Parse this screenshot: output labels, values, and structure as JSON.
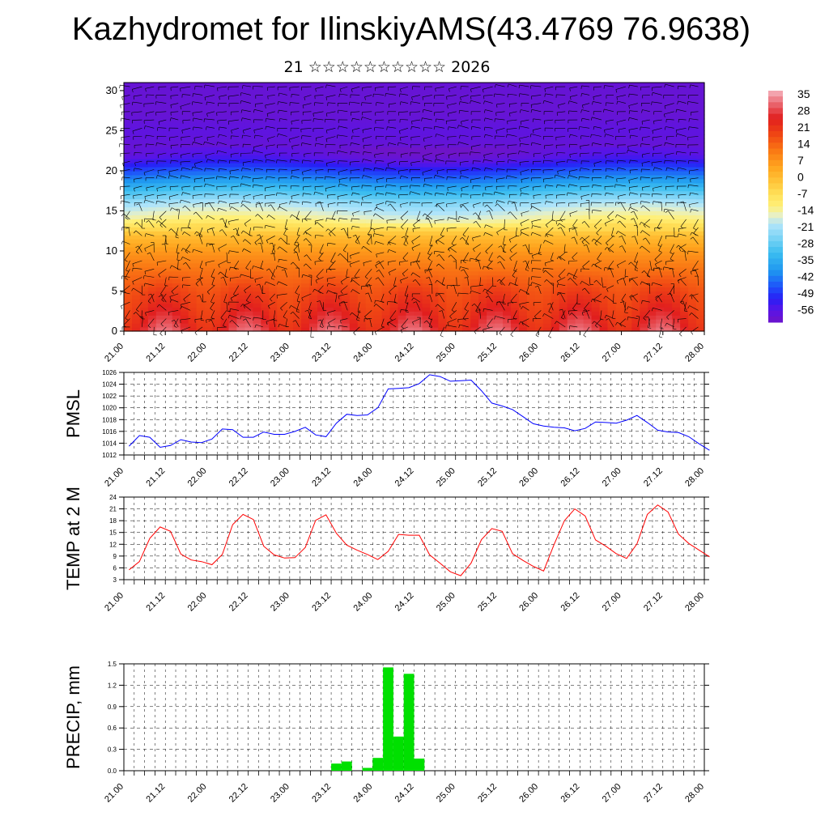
{
  "title": "Kazhydromet for IlinskiyAMS(43.4769 76.9638)",
  "subtitle": "21 ☆☆☆☆☆☆☆☆☆☆ 2026",
  "colors": {
    "pmsl_line": "#0000ff",
    "temp_line": "#ff0000",
    "precip_bar": "#00e000"
  },
  "chart_data": [
    {
      "type": "heatmap",
      "title": "",
      "xlabel": "",
      "ylabel": "",
      "x_ticks": [
        "21.00",
        "21.12",
        "22.00",
        "22.12",
        "23.00",
        "23.12",
        "24.00",
        "24.12",
        "25.00",
        "25.12",
        "26.00",
        "26.12",
        "27.00",
        "27.12",
        "28.00"
      ],
      "y_ticks": [
        0,
        5,
        10,
        15,
        20,
        25,
        30
      ],
      "ylim": [
        0,
        31
      ],
      "overlay": "wind barbs",
      "colorbar": {
        "labels": [
          "35",
          "28",
          "21",
          "14",
          "7",
          "0",
          "-7",
          "-14",
          "-21",
          "-28",
          "-35",
          "-42",
          "-49",
          "-56"
        ],
        "range": [
          -60,
          40
        ]
      },
      "profile": [
        [
          0,
          30
        ],
        [
          2,
          26
        ],
        [
          5,
          21
        ],
        [
          8,
          14
        ],
        [
          10,
          9
        ],
        [
          12,
          2
        ],
        [
          13,
          -5
        ],
        [
          14,
          -12
        ],
        [
          15,
          -16
        ],
        [
          16,
          -20
        ],
        [
          17,
          -27
        ],
        [
          18,
          -33
        ],
        [
          19,
          -40
        ],
        [
          20,
          -46
        ],
        [
          21,
          -52
        ],
        [
          22,
          -57
        ],
        [
          23,
          -58
        ],
        [
          25,
          -56
        ],
        [
          27,
          -58
        ],
        [
          31,
          -58
        ]
      ]
    },
    {
      "type": "line",
      "ylabel": "PMSL",
      "ylim": [
        1012,
        1026
      ],
      "y_ticks": [
        1012,
        1014,
        1016,
        1018,
        1020,
        1022,
        1024,
        1026
      ],
      "x_ticks": [
        "21.00",
        "21.12",
        "22.00",
        "22.12",
        "23.00",
        "23.12",
        "24.00",
        "24.12",
        "25.00",
        "25.12",
        "26.00",
        "26.12",
        "27.00",
        "27.12",
        "28.00"
      ],
      "series": [
        {
          "values": [
            1013.5,
            1015.3,
            1015.0,
            1013.3,
            1013.6,
            1014.6,
            1014.2,
            1014.1,
            1014.7,
            1016.4,
            1016.3,
            1015.0,
            1015.0,
            1015.9,
            1015.5,
            1015.5,
            1016.0,
            1016.7,
            1015.4,
            1015.1,
            1017.4,
            1018.9,
            1018.7,
            1018.8,
            1020.0,
            1023.2,
            1023.3,
            1023.4,
            1024.1,
            1025.6,
            1025.3,
            1024.5,
            1024.6,
            1024.7,
            1022.9,
            1020.8,
            1020.3,
            1019.7,
            1018.5,
            1017.3,
            1016.9,
            1016.7,
            1016.6,
            1016.1,
            1016.5,
            1017.6,
            1017.5,
            1017.4,
            1017.9,
            1018.7,
            1017.5,
            1016.2,
            1015.9,
            1015.8,
            1015.1,
            1013.9,
            1012.8
          ]
        }
      ]
    },
    {
      "type": "line",
      "ylabel": "TEMP at 2 M",
      "ylim": [
        3,
        24
      ],
      "y_ticks": [
        3,
        6,
        9,
        12,
        15,
        18,
        21,
        24
      ],
      "x_ticks": [
        "21.00",
        "21.12",
        "22.00",
        "22.12",
        "23.00",
        "23.12",
        "24.00",
        "24.12",
        "25.00",
        "25.12",
        "26.00",
        "26.12",
        "27.00",
        "27.12",
        "28.00"
      ],
      "series": [
        {
          "values": [
            5.5,
            7.6,
            13.5,
            16.4,
            15.3,
            9.5,
            8.0,
            7.6,
            6.8,
            9.4,
            17.0,
            19.6,
            18.3,
            11.5,
            9.3,
            8.5,
            8.6,
            11.2,
            18.1,
            19.5,
            14.8,
            11.8,
            10.5,
            9.4,
            8.1,
            10.2,
            14.5,
            14.3,
            14.3,
            9.3,
            7.2,
            5.0,
            4.0,
            7.2,
            13.2,
            16.0,
            15.3,
            9.6,
            7.9,
            6.4,
            5.2,
            11.9,
            18.0,
            21.0,
            19.2,
            13.1,
            11.5,
            9.6,
            8.4,
            12.1,
            19.6,
            22.0,
            20.2,
            14.6,
            12.2,
            10.5,
            8.8
          ]
        }
      ]
    },
    {
      "type": "bar",
      "ylabel": "PRECIP, mm",
      "ylim": [
        0,
        1.5
      ],
      "y_ticks": [
        0.0,
        0.3,
        0.6,
        0.9,
        1.2,
        1.5
      ],
      "x_ticks": [
        "21.00",
        "21.12",
        "22.00",
        "22.12",
        "23.00",
        "23.12",
        "24.00",
        "24.12",
        "25.00",
        "25.12",
        "26.00",
        "26.12",
        "27.00",
        "27.12",
        "28.00"
      ],
      "x_step_hours": 3,
      "values": [
        0,
        0,
        0,
        0,
        0,
        0,
        0,
        0,
        0,
        0,
        0,
        0,
        0,
        0,
        0,
        0,
        0,
        0,
        0,
        0,
        0.1,
        0.13,
        0,
        0.04,
        0.18,
        1.45,
        0.48,
        1.36,
        0.17,
        0,
        0,
        0,
        0,
        0,
        0,
        0,
        0,
        0,
        0,
        0,
        0,
        0,
        0,
        0,
        0,
        0,
        0,
        0,
        0,
        0,
        0,
        0,
        0,
        0,
        0,
        0,
        0
      ]
    }
  ]
}
